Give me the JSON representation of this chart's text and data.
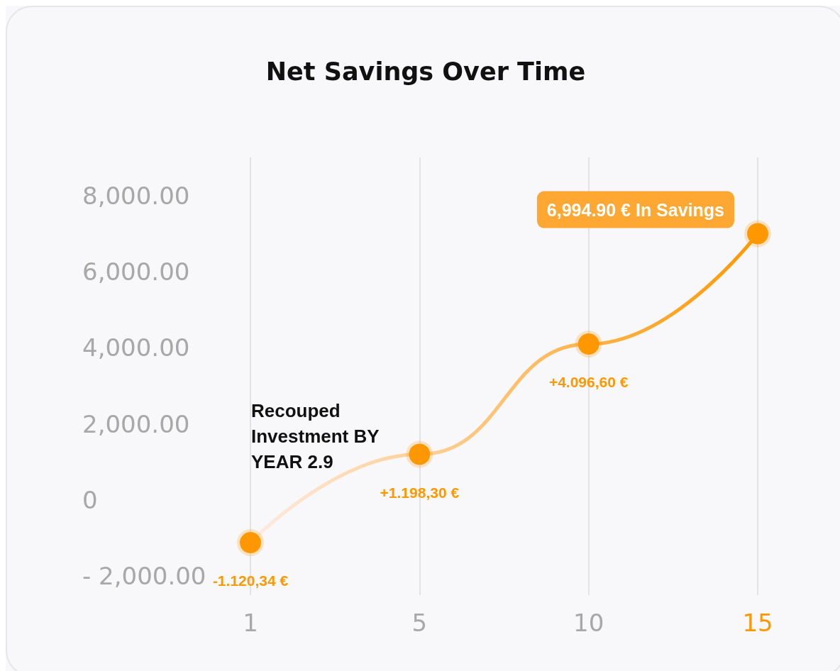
{
  "chart_data": {
    "type": "line",
    "title": "Net Savings Over Time",
    "categories": [
      "1",
      "5",
      "10",
      "15"
    ],
    "series": [
      {
        "color": "#ff9800",
        "values": [
          -1120.34,
          1198.3,
          4096.6,
          6994.9
        ],
        "value_labels": [
          "-1.120,34 €",
          "+1.198,30 €",
          "+4.096,60 €",
          "6,994.90 € In Savings"
        ]
      }
    ],
    "ylim": [
      -2500,
      9000
    ],
    "yticks": [
      {
        "value": -2000,
        "label": "- 2,000.00"
      },
      0,
      {
        "value": 2000,
        "label": "2,000.00"
      },
      {
        "value": 4000,
        "label": "4,000.00"
      },
      {
        "value": 6000,
        "label": "6,000.00"
      },
      {
        "value": 8000,
        "label": "8,000.00"
      }
    ],
    "annotations": [
      "Recouped Investment BY YEAR 2.9"
    ],
    "grid": "x",
    "marker": "circle",
    "line_style": "solid"
  }
}
